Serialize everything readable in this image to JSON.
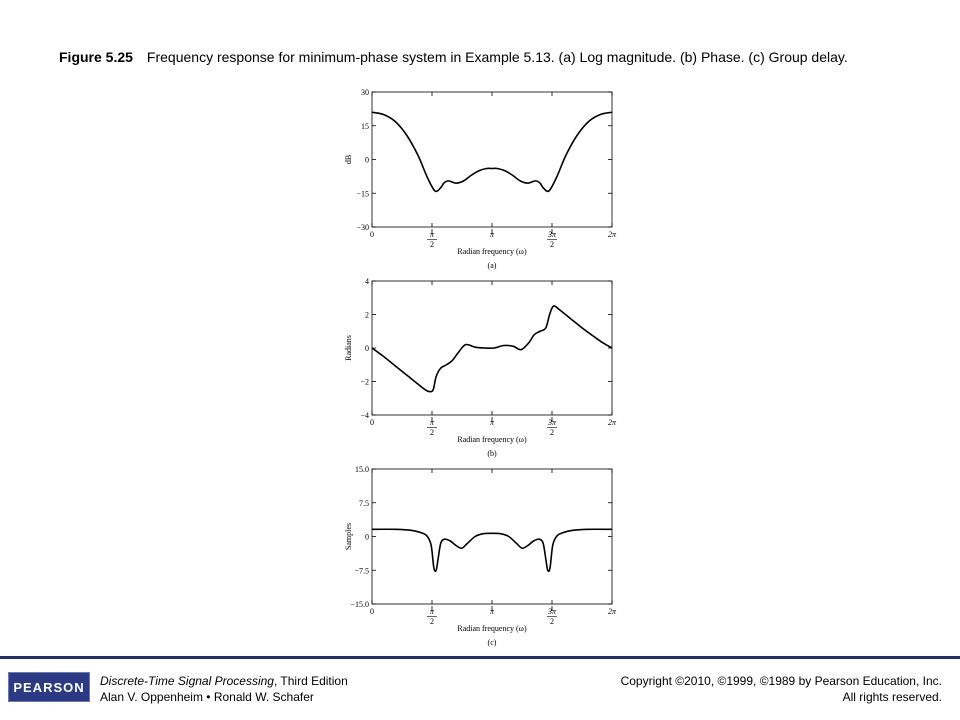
{
  "caption": {
    "figure_number": "Figure 5.25",
    "text": "Frequency response for minimum-phase system in Example 5.13. (a) Log magnitude. (b) Phase. (c) Group delay."
  },
  "chart_data": [
    {
      "type": "line",
      "panel_label": "(a)",
      "xlabel": "Radian frequency (ω)",
      "ylabel": "dB",
      "xlim": [
        0,
        6.2832
      ],
      "ylim": [
        -30,
        30
      ],
      "xticks": [
        {
          "value": 0,
          "num": "0",
          "den": ""
        },
        {
          "value": 1.5708,
          "num": "π",
          "den": "2"
        },
        {
          "value": 3.1416,
          "num": "π",
          "den": ""
        },
        {
          "value": 4.7124,
          "num": "3π",
          "den": "2"
        },
        {
          "value": 6.2832,
          "num": "2π",
          "den": ""
        }
      ],
      "yticks": [
        {
          "value": 30,
          "label": "30"
        },
        {
          "value": 15,
          "label": "15"
        },
        {
          "value": 0,
          "label": "0"
        },
        {
          "value": -15,
          "label": "−15"
        },
        {
          "value": -30,
          "label": "−30"
        }
      ],
      "x": [
        0,
        0.3,
        0.6,
        0.9,
        1.2,
        1.45,
        1.65,
        1.8,
        1.88,
        2.0,
        2.2,
        2.4,
        2.6,
        2.8,
        3.0,
        3.1416,
        3.28,
        3.48,
        3.68,
        3.88,
        4.08,
        4.28,
        4.4,
        4.48,
        4.63,
        4.83,
        5.08,
        5.38,
        5.68,
        5.98,
        6.2832
      ],
      "y": [
        21,
        20,
        17,
        11,
        2,
        -8,
        -14,
        -12.5,
        -10.5,
        -9.5,
        -10.5,
        -9.5,
        -7,
        -5,
        -4,
        -4,
        -4,
        -5,
        -7,
        -9.5,
        -10.5,
        -9.5,
        -10.5,
        -12.5,
        -14,
        -8,
        2,
        11,
        17,
        20,
        21
      ]
    },
    {
      "type": "line",
      "panel_label": "(b)",
      "xlabel": "Radian frequency (ω)",
      "ylabel": "Radians",
      "xlim": [
        0,
        6.2832
      ],
      "ylim": [
        -4,
        4
      ],
      "xticks": [
        {
          "value": 0,
          "num": "0",
          "den": ""
        },
        {
          "value": 1.5708,
          "num": "π",
          "den": "2"
        },
        {
          "value": 3.1416,
          "num": "π",
          "den": ""
        },
        {
          "value": 4.7124,
          "num": "3π",
          "den": "2"
        },
        {
          "value": 6.2832,
          "num": "2π",
          "den": ""
        }
      ],
      "yticks": [
        {
          "value": 4,
          "label": "4"
        },
        {
          "value": 2,
          "label": "2"
        },
        {
          "value": 0,
          "label": "0"
        },
        {
          "value": -2,
          "label": "−2"
        },
        {
          "value": -4,
          "label": "−4"
        }
      ],
      "x": [
        0,
        0.3,
        0.6,
        0.9,
        1.2,
        1.4,
        1.5,
        1.6,
        1.68,
        1.8,
        1.95,
        2.1,
        2.25,
        2.45,
        2.7,
        2.95,
        3.2,
        3.45,
        3.7,
        3.9,
        4.1,
        4.25,
        4.4,
        4.55,
        4.65,
        4.75,
        4.9,
        5.2,
        5.5,
        5.8,
        6.05,
        6.2832
      ],
      "y": [
        0,
        -0.5,
        -1.05,
        -1.6,
        -2.15,
        -2.5,
        -2.6,
        -2.5,
        -1.7,
        -1.2,
        -1.0,
        -0.75,
        -0.3,
        0.2,
        0.05,
        0.0,
        0.0,
        0.15,
        0.1,
        -0.1,
        0.3,
        0.8,
        1.0,
        1.2,
        2.0,
        2.5,
        2.3,
        1.75,
        1.2,
        0.7,
        0.3,
        0
      ]
    },
    {
      "type": "line",
      "panel_label": "(c)",
      "xlabel": "Radian frequency (ω)",
      "ylabel": "Samples",
      "xlim": [
        0,
        6.2832
      ],
      "ylim": [
        -15,
        15
      ],
      "xticks": [
        {
          "value": 0,
          "num": "0",
          "den": ""
        },
        {
          "value": 1.5708,
          "num": "π",
          "den": "2"
        },
        {
          "value": 3.1416,
          "num": "π",
          "den": ""
        },
        {
          "value": 4.7124,
          "num": "3π",
          "den": "2"
        },
        {
          "value": 6.2832,
          "num": "2π",
          "den": ""
        }
      ],
      "yticks": [
        {
          "value": 15,
          "label": "15.0"
        },
        {
          "value": 7.5,
          "label": "7.5"
        },
        {
          "value": 0,
          "label": "0"
        },
        {
          "value": -7.5,
          "label": "−7.5"
        },
        {
          "value": -15,
          "label": "−15.0"
        }
      ],
      "x": [
        0,
        0.6,
        1.0,
        1.3,
        1.45,
        1.55,
        1.62,
        1.68,
        1.73,
        1.8,
        1.9,
        2.05,
        2.2,
        2.35,
        2.5,
        2.7,
        2.9,
        3.1416,
        3.38,
        3.58,
        3.78,
        3.93,
        4.08,
        4.23,
        4.38,
        4.48,
        4.55,
        4.6,
        4.66,
        4.73,
        4.83,
        4.98,
        5.28,
        5.68,
        6.2832
      ],
      "y": [
        1.6,
        1.6,
        1.4,
        0.8,
        0,
        -2.0,
        -7.0,
        -7.5,
        -5.0,
        -1.5,
        -0.6,
        -1.0,
        -2.0,
        -2.6,
        -1.5,
        0,
        0.6,
        0.7,
        0.6,
        0,
        -1.5,
        -2.6,
        -2.0,
        -1.0,
        -0.6,
        -1.5,
        -5.0,
        -7.5,
        -7.0,
        -2.0,
        0,
        0.8,
        1.4,
        1.6,
        1.6
      ]
    }
  ],
  "footer": {
    "logo_text": "PEARSON",
    "book_title": "Discrete-Time Signal Processing",
    "edition": ", Third Edition",
    "authors": "Alan V. Oppenheim • Ronald W. Schafer",
    "copyright": "Copyright ©2010, ©1999, ©1989 by Pearson Education, Inc.",
    "rights": "All rights reserved."
  },
  "colors": {
    "footer_rule": "#1f2f6b",
    "logo_bg": "#2a3a84",
    "curve": "#000000"
  }
}
